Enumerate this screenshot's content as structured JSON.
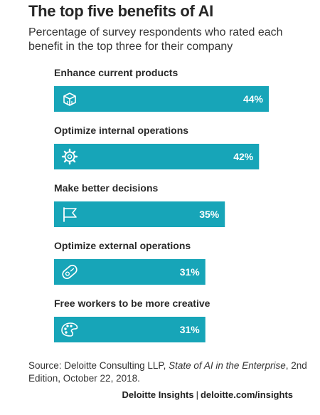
{
  "title": "The top five benefits of AI",
  "subtitle": "Percentage of survey respondents who rated each benefit in the top three for their company",
  "colors": {
    "bar": "#17a5b8",
    "icon": "#ffffff"
  },
  "chart_data": {
    "type": "bar",
    "orientation": "horizontal",
    "categories": [
      "Enhance current products",
      "Optimize internal operations",
      "Make better decisions",
      "Optimize external operations",
      "Free workers to be more creative"
    ],
    "values": [
      44,
      42,
      35,
      31,
      31
    ],
    "value_labels": [
      "44%",
      "42%",
      "35%",
      "31%",
      "31%"
    ],
    "icons": [
      "cube-icon",
      "gear-icon",
      "flag-icon",
      "link-tag-icon",
      "palette-icon"
    ],
    "unit": "%",
    "xlim": [
      0,
      44
    ],
    "grid": false,
    "legend": "none"
  },
  "source": {
    "prefix": "Source: Deloitte Consulting LLP, ",
    "publication": "State of AI in the Enterprise",
    "suffix": ", 2nd Edition, October 22, 2018."
  },
  "footer": {
    "brand": "Deloitte Insights",
    "separator": "|",
    "url": "deloitte.com/insights"
  }
}
